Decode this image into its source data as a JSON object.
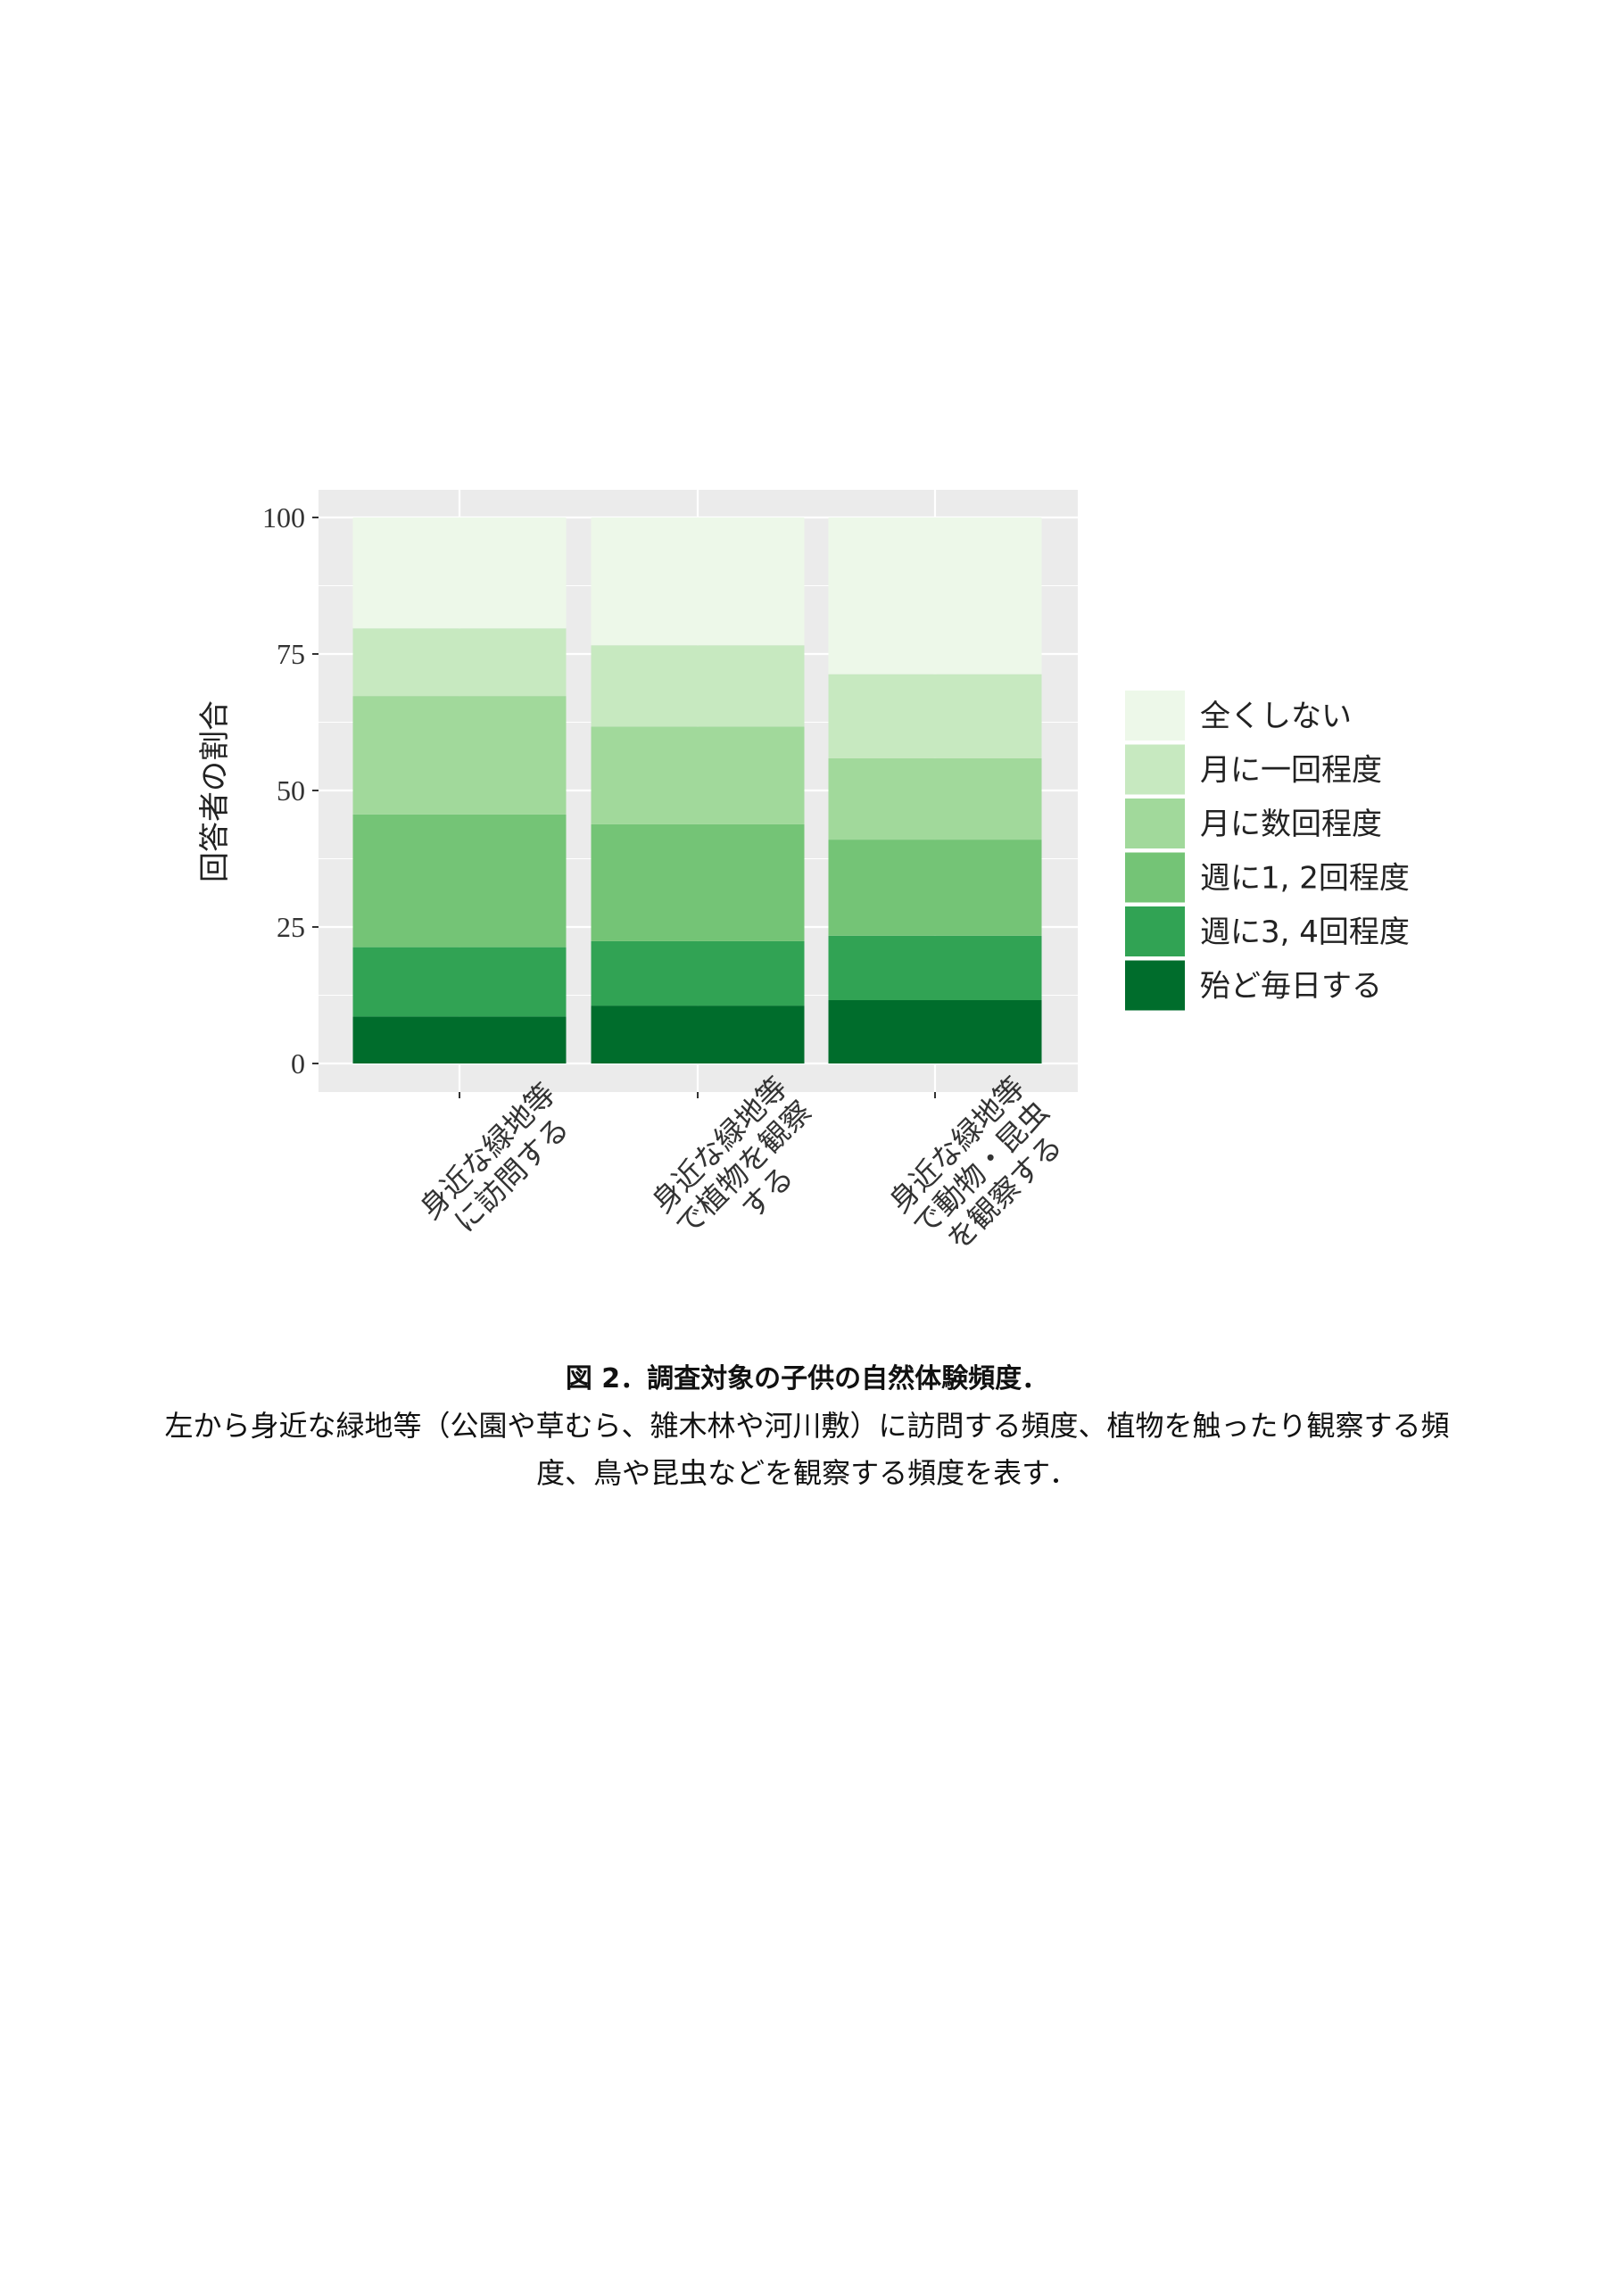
{
  "chart_data": {
    "type": "bar",
    "stacked": true,
    "categories": [
      [
        "身近な緑地等",
        "に訪問する"
      ],
      [
        "身近な緑地等",
        "で植物を観察",
        "する"
      ],
      [
        "身近な緑地等",
        "で動物・昆虫",
        "を観察する"
      ]
    ],
    "series": [
      {
        "name": "殆ど毎日する",
        "color": "#006D2C",
        "values": [
          8.6,
          10.6,
          11.6
        ]
      },
      {
        "name": "週に3, 4回程度",
        "color": "#31A354",
        "values": [
          12.7,
          11.8,
          11.8
        ]
      },
      {
        "name": "週に1, 2回程度",
        "color": "#74C476",
        "values": [
          24.3,
          21.4,
          17.6
        ]
      },
      {
        "name": "月に数回程度",
        "color": "#A1D99B",
        "values": [
          21.7,
          17.9,
          14.9
        ]
      },
      {
        "name": "月に一回程度",
        "color": "#C7E9C0",
        "values": [
          12.4,
          14.9,
          15.4
        ]
      },
      {
        "name": "全くしない",
        "color": "#EDF8E9",
        "values": [
          20.3,
          23.4,
          28.7
        ]
      }
    ],
    "legend_order": [
      "全くしない",
      "月に一回程度",
      "月に数回程度",
      "週に1, 2回程度",
      "週に3, 4回程度",
      "殆ど毎日する"
    ],
    "ylabel": "回答者の割合",
    "xlabel": "",
    "ylim": [
      0,
      100
    ],
    "yticks": [
      "0",
      "25",
      "50",
      "75",
      "100"
    ],
    "grid": true,
    "legend_position": "right",
    "panel_background": "#EBEBEB"
  },
  "caption": {
    "title": "図 2．調査対象の子供の自然体験頻度．",
    "body": "左から身近な緑地等（公園や草むら、雑木林や河川敷）に訪問する頻度、植物を触ったり観察する頻度、鳥や昆虫などを観察する頻度を表す．"
  }
}
